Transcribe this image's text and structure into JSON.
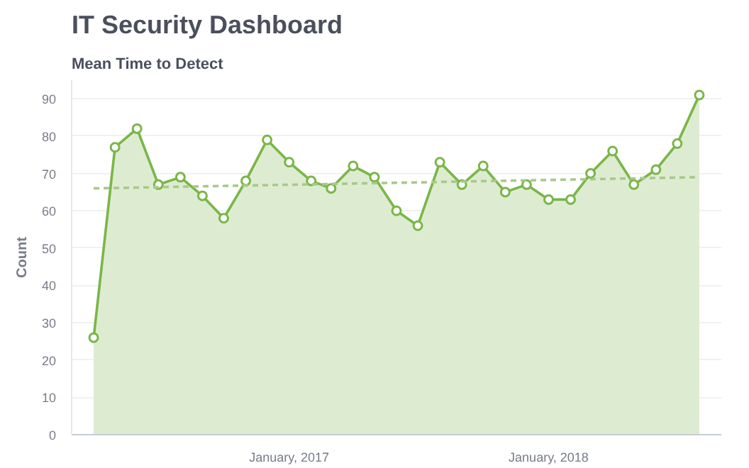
{
  "chart_data": {
    "type": "area",
    "title": "IT Security Dashboard",
    "subtitle": "Mean Time to Detect",
    "ylabel": "Count",
    "x": [
      "2016-04",
      "2016-05",
      "2016-06",
      "2016-07",
      "2016-08",
      "2016-09",
      "2016-10",
      "2016-11",
      "2016-12",
      "2017-01",
      "2017-02",
      "2017-03",
      "2017-04",
      "2017-05",
      "2017-06",
      "2017-07",
      "2017-08",
      "2017-09",
      "2017-10",
      "2017-11",
      "2017-12",
      "2018-01",
      "2018-02",
      "2018-03",
      "2018-04",
      "2018-05",
      "2018-06",
      "2018-07",
      "2018-08"
    ],
    "series": [
      {
        "color": "#7ab648",
        "values": [
          26,
          77,
          82,
          67,
          69,
          64,
          58,
          68,
          79,
          73,
          68,
          66,
          72,
          69,
          60,
          56,
          73,
          67,
          72,
          65,
          67,
          63,
          63,
          70,
          76,
          67,
          71,
          78,
          91
        ],
        "marker": "circle"
      },
      {
        "type": "line",
        "color": "#a9c98a",
        "x": [
          "2016-04",
          "2018-08"
        ],
        "values": [
          66,
          69
        ],
        "line_style": "dashed",
        "marker": "none"
      }
    ],
    "xlim": [
      "2016-03",
      "2018-09"
    ],
    "xticks": [
      {
        "value": "2017-01",
        "label": "January, 2017"
      },
      {
        "value": "2018-01",
        "label": "January, 2018"
      }
    ],
    "ylim": [
      0,
      95
    ],
    "yticks": [
      0,
      10,
      20,
      30,
      40,
      50,
      60,
      70,
      80,
      90
    ],
    "grid": "y"
  }
}
